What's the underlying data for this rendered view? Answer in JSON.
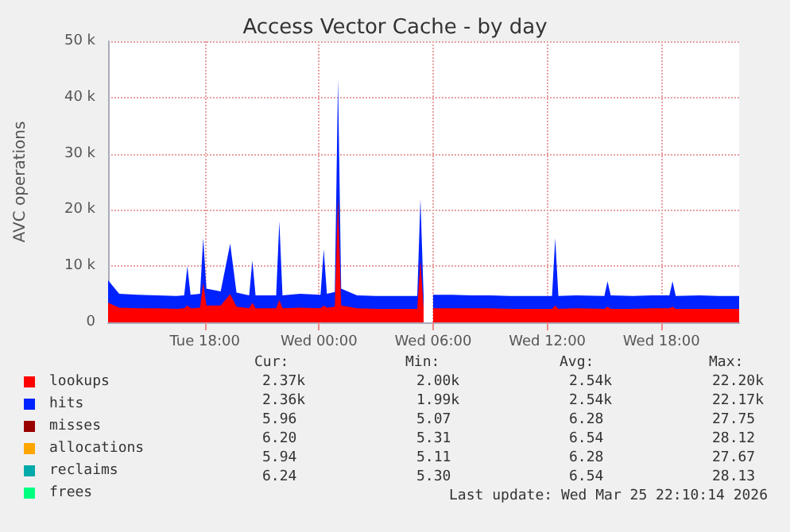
{
  "chart_data": {
    "type": "area",
    "title": "Access Vector Cache - by day",
    "ylabel": "AVC operations",
    "stacked": true,
    "grid": true,
    "legend": "bottom",
    "x": [
      "2026-03-24T12:55",
      "2026-03-24T13:30",
      "2026-03-24T14:30",
      "2026-03-24T15:30",
      "2026-03-24T16:30",
      "2026-03-24T16:55",
      "2026-03-24T17:05",
      "2026-03-24T17:15",
      "2026-03-24T17:45",
      "2026-03-24T17:55",
      "2026-03-24T18:05",
      "2026-03-24T18:50",
      "2026-03-24T19:20",
      "2026-03-24T19:40",
      "2026-03-24T20:20",
      "2026-03-24T20:30",
      "2026-03-24T20:40",
      "2026-03-24T21:45",
      "2026-03-24T21:55",
      "2026-03-24T22:05",
      "2026-03-24T23:00",
      "2026-03-25T00:05",
      "2026-03-25T00:15",
      "2026-03-25T00:25",
      "2026-03-25T00:50",
      "2026-03-25T01:00",
      "2026-03-25T01:10",
      "2026-03-25T02:00",
      "2026-03-25T03:00",
      "2026-03-25T04:00",
      "2026-03-25T05:10",
      "2026-03-25T05:20",
      "2026-03-25T05:30",
      "2026-03-25T05:50",
      "2026-03-25T06:00",
      "2026-03-25T07:00",
      "2026-03-25T08:00",
      "2026-03-25T09:00",
      "2026-03-25T10:00",
      "2026-03-25T11:00",
      "2026-03-25T12:15",
      "2026-03-25T12:25",
      "2026-03-25T12:35",
      "2026-03-25T13:30",
      "2026-03-25T15:00",
      "2026-03-25T15:10",
      "2026-03-25T15:20",
      "2026-03-25T16:30",
      "2026-03-25T17:30",
      "2026-03-25T18:25",
      "2026-03-25T18:35",
      "2026-03-25T18:45",
      "2026-03-25T20:00",
      "2026-03-25T21:00",
      "2026-03-25T22:05"
    ],
    "xlim": [
      "2026-03-24T12:55",
      "2026-03-25T22:05"
    ],
    "xticks": [
      {
        "value": "2026-03-24T18:00",
        "label": "Tue 18:00"
      },
      {
        "value": "2026-03-25T00:00",
        "label": "Wed 00:00"
      },
      {
        "value": "2026-03-25T06:00",
        "label": "Wed 06:00"
      },
      {
        "value": "2026-03-25T12:00",
        "label": "Wed 12:00"
      },
      {
        "value": "2026-03-25T18:00",
        "label": "Wed 18:00"
      }
    ],
    "ylim": [
      0,
      50000
    ],
    "yticks": [
      0,
      {
        "value": 10000,
        "label": "10 k"
      },
      {
        "value": 20000,
        "label": "20 k"
      },
      {
        "value": 30000,
        "label": "30 k"
      },
      {
        "value": 40000,
        "label": "40 k"
      },
      {
        "value": 50000,
        "label": "50 k"
      }
    ],
    "series": [
      {
        "name": "lookups",
        "color": "#ff0000",
        "values": [
          3500,
          2600,
          2500,
          2500,
          2400,
          2500,
          3000,
          2500,
          2600,
          7000,
          3000,
          3000,
          5000,
          2800,
          2500,
          3500,
          2500,
          2500,
          4000,
          2500,
          2600,
          2500,
          3000,
          2600,
          2800,
          22200,
          3000,
          2500,
          2400,
          2400,
          2400,
          11000,
          2400,
          null,
          2500,
          2500,
          2500,
          2500,
          2400,
          2400,
          2400,
          3000,
          2400,
          2500,
          2400,
          2800,
          2400,
          2400,
          2500,
          2500,
          2800,
          2400,
          2400,
          2400,
          2400
        ]
      },
      {
        "name": "hits",
        "color": "#0022ff",
        "values": [
          4000,
          2500,
          2400,
          2300,
          2300,
          2300,
          7000,
          2400,
          2500,
          8000,
          3000,
          2500,
          9000,
          2500,
          2300,
          7500,
          2300,
          2300,
          14000,
          2300,
          2500,
          2400,
          10000,
          2500,
          2600,
          21000,
          3000,
          2300,
          2300,
          2300,
          2300,
          11000,
          2300,
          null,
          2400,
          2400,
          2300,
          2300,
          2300,
          2300,
          2300,
          12000,
          2300,
          2300,
          2300,
          4500,
          2400,
          2300,
          2300,
          2300,
          4500,
          2300,
          2400,
          2300,
          2300
        ]
      },
      {
        "name": "misses",
        "type": "line",
        "color": "#990000",
        "values": [
          null,
          null,
          null,
          null,
          null,
          null,
          null,
          null,
          null,
          null,
          null,
          null,
          null,
          null,
          null,
          null,
          null,
          null,
          null,
          null,
          null,
          null,
          null,
          null,
          null,
          null,
          null,
          null,
          null,
          null,
          null,
          null,
          null,
          null,
          null,
          null,
          null,
          null,
          null,
          null,
          null,
          null,
          null,
          null,
          null,
          null,
          null,
          null,
          null,
          null,
          null,
          null,
          null,
          null,
          null
        ]
      },
      {
        "name": "allocations",
        "type": "line",
        "color": "#ffa500",
        "values": [
          null,
          null,
          null,
          null,
          null,
          null,
          null,
          null,
          null,
          null,
          null,
          null,
          null,
          null,
          null,
          null,
          null,
          null,
          null,
          null,
          null,
          null,
          null,
          null,
          null,
          null,
          null,
          null,
          null,
          null,
          null,
          null,
          null,
          null,
          null,
          null,
          null,
          null,
          null,
          null,
          null,
          null,
          null,
          null,
          null,
          null,
          null,
          null,
          null,
          null,
          null,
          null,
          null,
          null,
          null
        ]
      },
      {
        "name": "reclaims",
        "type": "line",
        "color": "#00aaaa",
        "values": [
          null,
          null,
          null,
          null,
          null,
          null,
          null,
          null,
          null,
          null,
          null,
          null,
          null,
          null,
          null,
          null,
          null,
          null,
          null,
          null,
          null,
          null,
          null,
          null,
          null,
          null,
          null,
          null,
          null,
          null,
          null,
          null,
          null,
          null,
          null,
          null,
          null,
          null,
          null,
          null,
          null,
          null,
          null,
          null,
          null,
          null,
          null,
          null,
          null,
          null,
          null,
          null,
          null,
          null,
          null
        ]
      },
      {
        "name": "frees",
        "type": "line",
        "color": "#00ff7f",
        "values": [
          null,
          null,
          null,
          null,
          null,
          null,
          null,
          null,
          null,
          null,
          null,
          null,
          null,
          null,
          null,
          null,
          null,
          null,
          null,
          null,
          null,
          null,
          null,
          null,
          null,
          null,
          null,
          null,
          null,
          null,
          null,
          null,
          null,
          null,
          null,
          null,
          null,
          null,
          null,
          null,
          null,
          null,
          null,
          null,
          null,
          null,
          null,
          null,
          null,
          null,
          null,
          null,
          null,
          null,
          null
        ]
      }
    ],
    "annotations": [
      "Cur:",
      "Min:",
      "Avg:",
      "Max:",
      "2.37k",
      "2.00k",
      "2.54k",
      "22.20k",
      "2.36k",
      "1.99k",
      "2.54k",
      "22.17k",
      "5.96",
      "5.07",
      "6.28",
      "27.75",
      "6.20",
      "5.31",
      "6.54",
      "28.12",
      "5.94",
      "5.11",
      "6.28",
      "27.67",
      "6.24",
      "5.30",
      "6.54",
      "28.13",
      "Last update: Wed Mar 25 22:10:14 2026"
    ]
  }
}
